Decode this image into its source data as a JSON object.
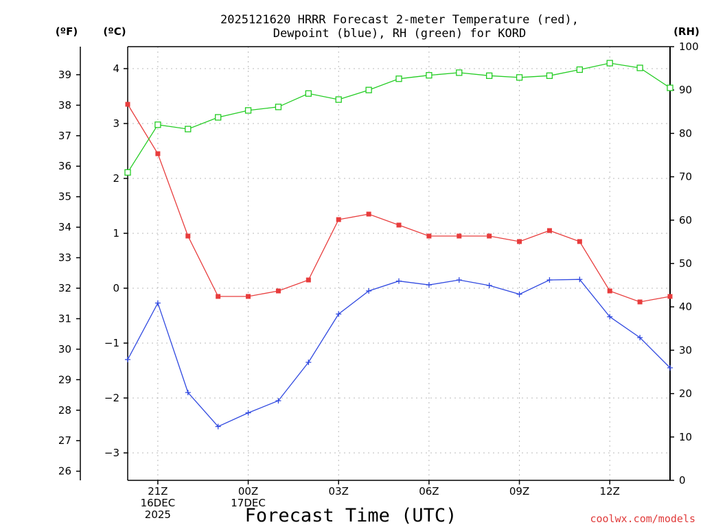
{
  "chart_data": {
    "type": "line",
    "title": [
      "2025121620 HRRR Forecast 2-meter Temperature (red),",
      "Dewpoint (blue), RH (green) for KORD"
    ],
    "xlabel": "Forecast Time (UTC)",
    "credit": "coolwx.com/models",
    "units": {
      "fahrenheit": "(ºF)",
      "celsius": "(ºC)",
      "rh": "(RH)"
    },
    "x": [
      0,
      1,
      2,
      3,
      4,
      5,
      6,
      7,
      8,
      9,
      10,
      11,
      12,
      13,
      14,
      15,
      16,
      17,
      18
    ],
    "xlim": [
      0,
      18
    ],
    "x_ticks": [
      {
        "x": 1,
        "lines": [
          "21Z",
          "16DEC",
          "2025"
        ]
      },
      {
        "x": 4,
        "lines": [
          "00Z",
          "17DEC"
        ]
      },
      {
        "x": 7,
        "lines": [
          "03Z"
        ]
      },
      {
        "x": 10,
        "lines": [
          "06Z"
        ]
      },
      {
        "x": 13,
        "lines": [
          "09Z"
        ]
      },
      {
        "x": 16,
        "lines": [
          "12Z"
        ]
      }
    ],
    "y_celsius": {
      "range": [
        -3.5,
        4.4
      ],
      "ticks": [
        -3,
        -2,
        -1,
        0,
        1,
        2,
        3,
        4
      ]
    },
    "y_fahrenheit": {
      "ticks": [
        26,
        27,
        28,
        29,
        30,
        31,
        32,
        33,
        34,
        35,
        36,
        37,
        38,
        39
      ]
    },
    "y_rh": {
      "range": [
        0,
        100
      ],
      "ticks": [
        0,
        10,
        20,
        30,
        40,
        50,
        60,
        70,
        80,
        90,
        100
      ]
    },
    "series": [
      {
        "name": "Temperature",
        "axis": "celsius",
        "color": "#e83c3c",
        "marker": "filled-square",
        "values": [
          3.35,
          2.45,
          0.95,
          -0.15,
          -0.15,
          -0.05,
          0.15,
          1.25,
          1.35,
          1.15,
          0.95,
          0.95,
          0.95,
          0.85,
          1.05,
          0.85,
          -0.05,
          -0.25,
          -0.15
        ]
      },
      {
        "name": "Dewpoint",
        "axis": "celsius",
        "color": "#2f48e0",
        "marker": "plus",
        "values": [
          -1.3,
          -0.27,
          -1.9,
          -2.52,
          -2.27,
          -2.05,
          -1.35,
          -0.47,
          -0.05,
          0.13,
          0.06,
          0.15,
          0.05,
          -0.11,
          0.15,
          0.16,
          -0.52,
          -0.9,
          -1.45
        ]
      },
      {
        "name": "RH",
        "axis": "rh",
        "color": "#22cc22",
        "marker": "open-square",
        "values": [
          71,
          82,
          81,
          83.7,
          85.3,
          86.1,
          89.2,
          87.8,
          90,
          92.6,
          93.4,
          94,
          93.3,
          92.9,
          93.3,
          94.7,
          96.2,
          95.1,
          90.5
        ]
      }
    ]
  }
}
